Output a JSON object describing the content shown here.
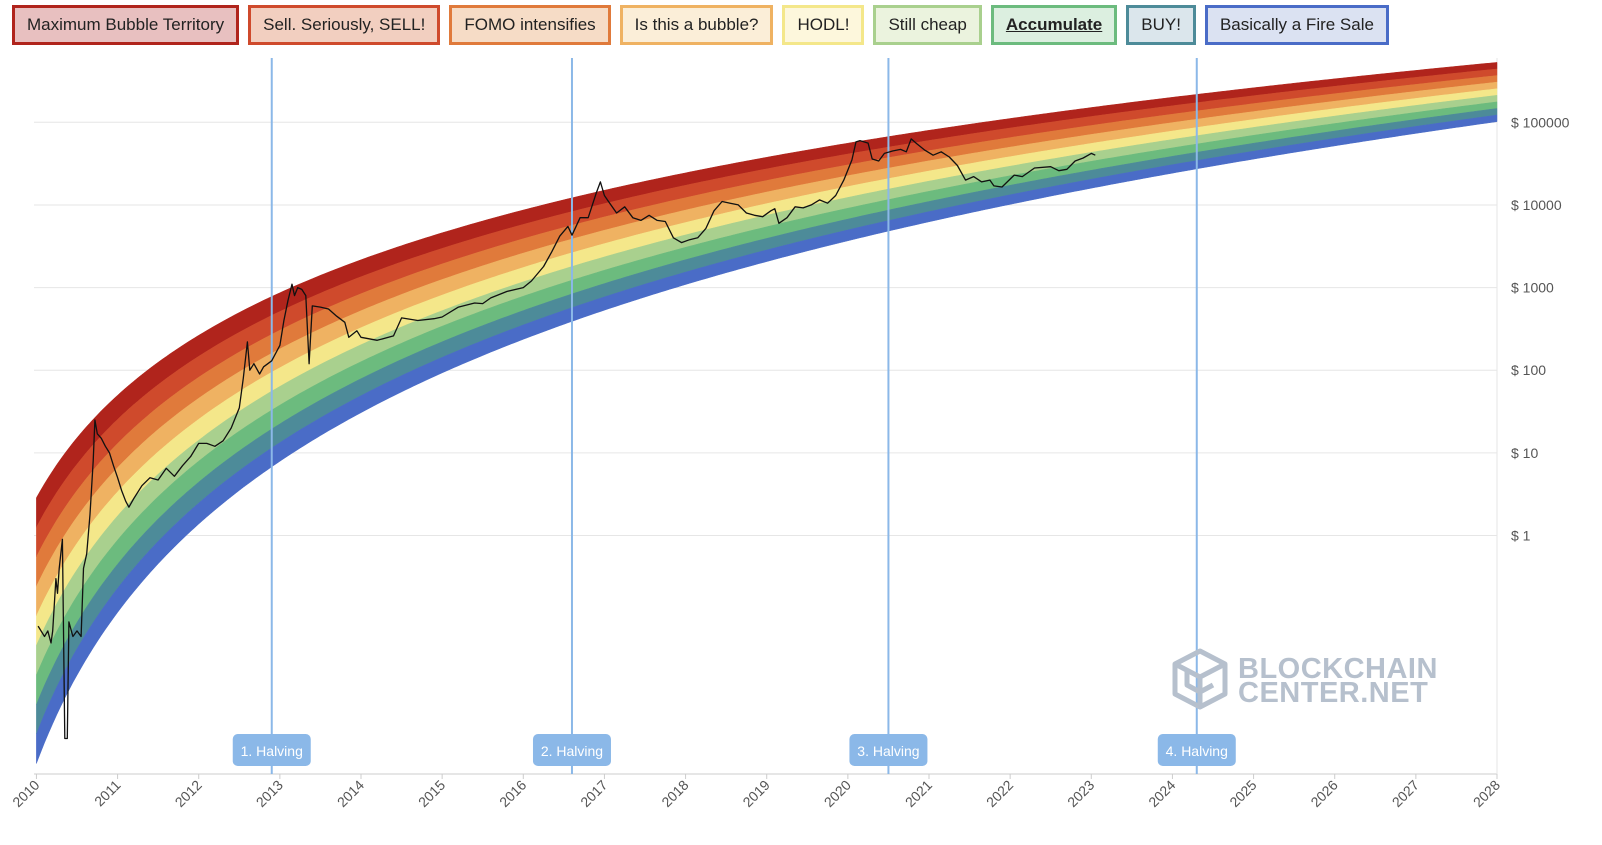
{
  "legend": {
    "items": [
      {
        "label": "Maximum Bubble Territory",
        "fill": "#e8c0c0",
        "border": "#b0241c",
        "active": false
      },
      {
        "label": "Sell. Seriously, SELL!",
        "fill": "#f2cfc0",
        "border": "#cf4a2c",
        "active": false
      },
      {
        "label": "FOMO intensifies",
        "fill": "#f6dcc6",
        "border": "#e07a3b",
        "active": false
      },
      {
        "label": "Is this a bubble?",
        "fill": "#fbeed8",
        "border": "#efb262",
        "active": false
      },
      {
        "label": "HODL!",
        "fill": "#fdf7dc",
        "border": "#f4e78a",
        "active": false
      },
      {
        "label": "Still cheap",
        "fill": "#ebf3de",
        "border": "#a9d08e",
        "active": false
      },
      {
        "label": "Accumulate",
        "fill": "#dcefe0",
        "border": "#6cbb7e",
        "active": true
      },
      {
        "label": "BUY!",
        "fill": "#dbe6ec",
        "border": "#4d8b99",
        "active": false
      },
      {
        "label": "Basically a Fire Sale",
        "fill": "#dbe2f2",
        "border": "#4a6cc7",
        "active": false
      }
    ]
  },
  "watermark": {
    "line1": "BLOCKCHAIN",
    "line2": "CENTER.NET"
  },
  "chart_data": {
    "type": "line",
    "title": "",
    "xlabel": "",
    "ylabel": "",
    "x_axis": {
      "ticks": [
        "2010",
        "2011",
        "2012",
        "2013",
        "2014",
        "2015",
        "2016",
        "2017",
        "2018",
        "2019",
        "2020",
        "2021",
        "2022",
        "2023",
        "2024",
        "2025",
        "2026",
        "2027",
        "2028"
      ],
      "range": [
        2009.97,
        2028.0
      ]
    },
    "y_axis": {
      "scale": "log",
      "ticks": [
        1,
        10,
        100,
        1000,
        10000,
        100000
      ],
      "tick_labels": [
        "$ 1",
        "$ 10",
        "$ 100",
        "$ 1000",
        "$ 10000",
        "$ 100000"
      ],
      "range": [
        0.0013,
        600000
      ]
    },
    "grid": "horizontal",
    "rainbow_bands": {
      "colors": [
        "#b0241c",
        "#cf4a2c",
        "#e07a3b",
        "#efb262",
        "#f4e78a",
        "#a9d08e",
        "#6cbb7e",
        "#4d8b99",
        "#4a6cc7"
      ],
      "top_edge": [
        [
          2010.0,
          4.5
        ],
        [
          2013.0,
          400
        ],
        [
          2016.5,
          9000
        ],
        [
          2021.0,
          100000
        ],
        [
          2028.0,
          750000
        ]
      ],
      "bottom_edge": [
        [
          2010.0,
          0.0015
        ],
        [
          2013.0,
          10
        ],
        [
          2016.5,
          380
        ],
        [
          2021.0,
          6500
        ],
        [
          2028.0,
          85000
        ]
      ]
    },
    "halvings": [
      {
        "label": "1. Halving",
        "x": 2012.9
      },
      {
        "label": "2. Halving",
        "x": 2016.6
      },
      {
        "label": "3. Halving",
        "x": 2020.5
      },
      {
        "label": "4. Halving",
        "x": 2024.3
      }
    ],
    "series": [
      {
        "values": [
          [
            2010.02,
            0.08
          ],
          [
            2010.1,
            0.06
          ],
          [
            2010.14,
            0.07
          ],
          [
            2010.18,
            0.05
          ],
          [
            2010.2,
            0.07
          ],
          [
            2010.24,
            0.3
          ],
          [
            2010.26,
            0.2
          ],
          [
            2010.28,
            0.4
          ],
          [
            2010.32,
            0.9
          ],
          [
            2010.35,
            0.0035
          ],
          [
            2010.38,
            0.0035
          ],
          [
            2010.4,
            0.09
          ],
          [
            2010.45,
            0.06
          ],
          [
            2010.5,
            0.07
          ],
          [
            2010.55,
            0.06
          ],
          [
            2010.58,
            0.4
          ],
          [
            2010.62,
            0.6
          ],
          [
            2010.66,
            1.8
          ],
          [
            2010.7,
            8
          ],
          [
            2010.72,
            25
          ],
          [
            2010.75,
            17
          ],
          [
            2010.8,
            15
          ],
          [
            2010.85,
            12
          ],
          [
            2010.9,
            10
          ],
          [
            2010.95,
            7
          ],
          [
            2011.0,
            5
          ],
          [
            2011.05,
            3.5
          ],
          [
            2011.1,
            2.6
          ],
          [
            2011.14,
            2.2
          ],
          [
            2011.2,
            2.8
          ],
          [
            2011.3,
            4
          ],
          [
            2011.4,
            5
          ],
          [
            2011.5,
            4.7
          ],
          [
            2011.6,
            6.5
          ],
          [
            2011.7,
            5.2
          ],
          [
            2011.8,
            7
          ],
          [
            2011.9,
            9
          ],
          [
            2012.0,
            13
          ],
          [
            2012.1,
            13
          ],
          [
            2012.2,
            12
          ],
          [
            2012.3,
            14
          ],
          [
            2012.4,
            20
          ],
          [
            2012.5,
            35
          ],
          [
            2012.55,
            80
          ],
          [
            2012.6,
            220
          ],
          [
            2012.63,
            100
          ],
          [
            2012.68,
            120
          ],
          [
            2012.75,
            90
          ],
          [
            2012.8,
            110
          ],
          [
            2012.9,
            130
          ],
          [
            2013.0,
            200
          ],
          [
            2013.05,
            400
          ],
          [
            2013.1,
            700
          ],
          [
            2013.15,
            1100
          ],
          [
            2013.18,
            800
          ],
          [
            2013.22,
            1000
          ],
          [
            2013.27,
            950
          ],
          [
            2013.32,
            800
          ],
          [
            2013.36,
            120
          ],
          [
            2013.4,
            600
          ],
          [
            2013.5,
            580
          ],
          [
            2013.6,
            550
          ],
          [
            2013.7,
            450
          ],
          [
            2013.8,
            380
          ],
          [
            2013.85,
            250
          ],
          [
            2013.95,
            300
          ],
          [
            2014.0,
            250
          ],
          [
            2014.2,
            230
          ],
          [
            2014.4,
            260
          ],
          [
            2014.5,
            430
          ],
          [
            2014.7,
            400
          ],
          [
            2014.9,
            420
          ],
          [
            2015.0,
            440
          ],
          [
            2015.2,
            580
          ],
          [
            2015.4,
            650
          ],
          [
            2015.5,
            640
          ],
          [
            2015.6,
            750
          ],
          [
            2015.8,
            900
          ],
          [
            2016.0,
            1000
          ],
          [
            2016.1,
            1200
          ],
          [
            2016.25,
            1800
          ],
          [
            2016.35,
            2700
          ],
          [
            2016.45,
            4200
          ],
          [
            2016.55,
            5500
          ],
          [
            2016.6,
            4300
          ],
          [
            2016.7,
            7000
          ],
          [
            2016.8,
            7000
          ],
          [
            2016.9,
            14000
          ],
          [
            2016.95,
            19000
          ],
          [
            2017.0,
            13000
          ],
          [
            2017.05,
            11000
          ],
          [
            2017.15,
            8000
          ],
          [
            2017.25,
            9500
          ],
          [
            2017.35,
            7000
          ],
          [
            2017.45,
            6500
          ],
          [
            2017.55,
            7500
          ],
          [
            2017.65,
            6500
          ],
          [
            2017.75,
            6300
          ],
          [
            2017.85,
            4000
          ],
          [
            2017.95,
            3500
          ],
          [
            2018.05,
            3800
          ],
          [
            2018.15,
            4000
          ],
          [
            2018.25,
            5200
          ],
          [
            2018.35,
            8500
          ],
          [
            2018.45,
            11000
          ],
          [
            2018.55,
            10500
          ],
          [
            2018.65,
            10000
          ],
          [
            2018.75,
            8000
          ],
          [
            2018.85,
            7500
          ],
          [
            2018.95,
            7200
          ],
          [
            2019.05,
            8500
          ],
          [
            2019.1,
            9000
          ],
          [
            2019.15,
            6000
          ],
          [
            2019.25,
            7000
          ],
          [
            2019.35,
            9500
          ],
          [
            2019.45,
            9200
          ],
          [
            2019.55,
            10000
          ],
          [
            2019.65,
            11500
          ],
          [
            2019.75,
            10500
          ],
          [
            2019.85,
            13000
          ],
          [
            2019.95,
            20000
          ],
          [
            2020.05,
            35000
          ],
          [
            2020.1,
            58000
          ],
          [
            2020.15,
            60000
          ],
          [
            2020.25,
            56000
          ],
          [
            2020.3,
            36000
          ],
          [
            2020.38,
            34000
          ],
          [
            2020.45,
            42000
          ],
          [
            2020.55,
            45000
          ],
          [
            2020.65,
            47000
          ],
          [
            2020.72,
            44000
          ],
          [
            2020.78,
            63000
          ],
          [
            2020.85,
            55000
          ],
          [
            2020.95,
            46000
          ],
          [
            2021.05,
            40000
          ],
          [
            2021.15,
            44000
          ],
          [
            2021.25,
            38000
          ],
          [
            2021.35,
            30000
          ],
          [
            2021.45,
            20000
          ],
          [
            2021.55,
            22000
          ],
          [
            2021.65,
            19000
          ],
          [
            2021.75,
            20000
          ],
          [
            2021.8,
            17000
          ],
          [
            2021.9,
            16500
          ],
          [
            2022.05,
            23000
          ],
          [
            2022.15,
            22000
          ],
          [
            2022.3,
            28000
          ],
          [
            2022.5,
            29000
          ],
          [
            2022.6,
            26000
          ],
          [
            2022.7,
            27000
          ],
          [
            2022.8,
            34000
          ],
          [
            2022.9,
            37000
          ],
          [
            2023.0,
            42000
          ],
          [
            2023.05,
            40000
          ]
        ]
      }
    ]
  }
}
